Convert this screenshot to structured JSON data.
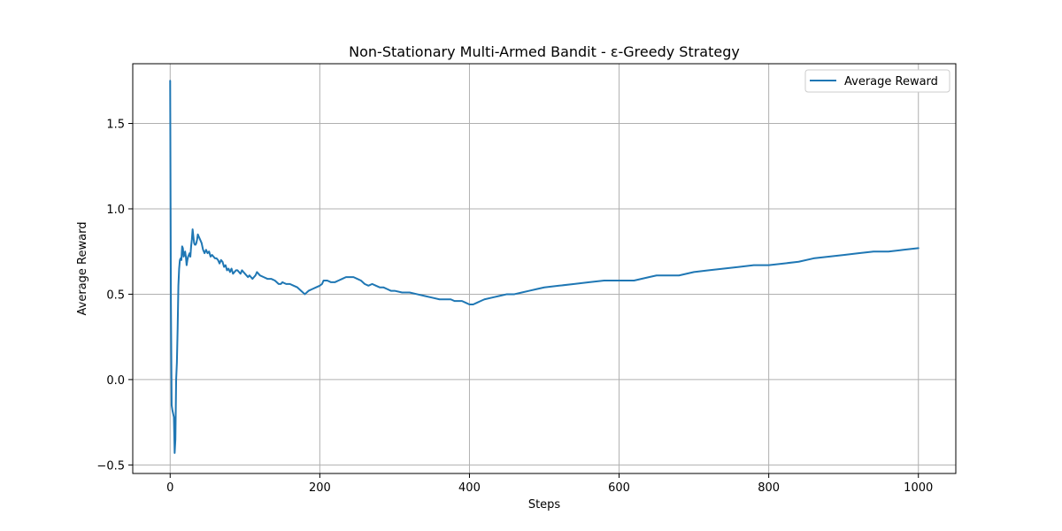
{
  "chart_data": {
    "type": "line",
    "title": "Non-Stationary Multi-Armed Bandit - ε-Greedy Strategy",
    "xlabel": "Steps",
    "ylabel": "Average Reward",
    "xlim": [
      -50,
      1050
    ],
    "ylim": [
      -0.55,
      1.85
    ],
    "xticks": [
      0,
      200,
      400,
      600,
      800,
      1000
    ],
    "xtick_labels": [
      "0",
      "200",
      "400",
      "600",
      "800",
      "1000"
    ],
    "yticks": [
      -0.5,
      0.0,
      0.5,
      1.0,
      1.5
    ],
    "ytick_labels": [
      "−0.5",
      "0.0",
      "0.5",
      "1.0",
      "1.5"
    ],
    "grid": true,
    "legend_position": "top-right",
    "series": [
      {
        "name": "Average Reward",
        "color": "#1f77b4",
        "x": [
          0,
          1,
          2,
          3,
          4,
          5,
          6,
          7,
          8,
          9,
          10,
          11,
          12,
          13,
          14,
          15,
          16,
          17,
          18,
          19,
          20,
          21,
          22,
          23,
          24,
          25,
          26,
          27,
          28,
          29,
          30,
          31,
          32,
          33,
          34,
          35,
          36,
          37,
          38,
          39,
          40,
          42,
          44,
          46,
          48,
          50,
          52,
          54,
          56,
          58,
          60,
          62,
          64,
          66,
          68,
          70,
          72,
          74,
          76,
          78,
          80,
          82,
          84,
          86,
          88,
          90,
          92,
          94,
          96,
          98,
          100,
          102,
          104,
          106,
          108,
          110,
          112,
          114,
          116,
          118,
          120,
          125,
          130,
          135,
          140,
          145,
          148,
          150,
          155,
          160,
          165,
          170,
          175,
          180,
          185,
          190,
          195,
          200,
          203,
          205,
          210,
          215,
          220,
          225,
          230,
          235,
          240,
          245,
          250,
          255,
          260,
          265,
          270,
          275,
          280,
          285,
          290,
          295,
          300,
          310,
          320,
          330,
          340,
          350,
          360,
          370,
          375,
          380,
          385,
          390,
          395,
          400,
          405,
          410,
          415,
          420,
          430,
          440,
          450,
          460,
          470,
          480,
          490,
          500,
          520,
          540,
          560,
          580,
          600,
          620,
          640,
          650,
          660,
          680,
          700,
          720,
          740,
          760,
          780,
          800,
          820,
          840,
          860,
          880,
          900,
          920,
          940,
          960,
          980,
          1000
        ],
        "values": [
          1.75,
          0.45,
          -0.15,
          -0.18,
          -0.2,
          -0.22,
          -0.43,
          -0.35,
          -0.0,
          0.1,
          0.3,
          0.55,
          0.65,
          0.7,
          0.71,
          0.7,
          0.78,
          0.77,
          0.72,
          0.73,
          0.75,
          0.72,
          0.67,
          0.7,
          0.72,
          0.73,
          0.74,
          0.72,
          0.78,
          0.82,
          0.88,
          0.84,
          0.8,
          0.79,
          0.79,
          0.8,
          0.82,
          0.85,
          0.84,
          0.83,
          0.82,
          0.8,
          0.76,
          0.74,
          0.76,
          0.74,
          0.75,
          0.72,
          0.73,
          0.72,
          0.71,
          0.71,
          0.7,
          0.68,
          0.7,
          0.69,
          0.66,
          0.67,
          0.64,
          0.65,
          0.63,
          0.65,
          0.62,
          0.63,
          0.64,
          0.64,
          0.63,
          0.62,
          0.64,
          0.63,
          0.62,
          0.61,
          0.6,
          0.61,
          0.6,
          0.59,
          0.6,
          0.61,
          0.63,
          0.62,
          0.61,
          0.6,
          0.59,
          0.59,
          0.58,
          0.56,
          0.56,
          0.57,
          0.56,
          0.56,
          0.55,
          0.54,
          0.52,
          0.5,
          0.52,
          0.53,
          0.54,
          0.55,
          0.56,
          0.58,
          0.58,
          0.57,
          0.57,
          0.58,
          0.59,
          0.6,
          0.6,
          0.6,
          0.59,
          0.58,
          0.56,
          0.55,
          0.56,
          0.55,
          0.54,
          0.54,
          0.53,
          0.52,
          0.52,
          0.51,
          0.51,
          0.5,
          0.49,
          0.48,
          0.47,
          0.47,
          0.47,
          0.46,
          0.46,
          0.46,
          0.45,
          0.44,
          0.44,
          0.45,
          0.46,
          0.47,
          0.48,
          0.49,
          0.5,
          0.5,
          0.51,
          0.52,
          0.53,
          0.54,
          0.55,
          0.56,
          0.57,
          0.58,
          0.58,
          0.58,
          0.6,
          0.61,
          0.61,
          0.61,
          0.63,
          0.64,
          0.65,
          0.66,
          0.67,
          0.67,
          0.68,
          0.69,
          0.71,
          0.72,
          0.73,
          0.74,
          0.75,
          0.75,
          0.76,
          0.77
        ]
      }
    ]
  }
}
